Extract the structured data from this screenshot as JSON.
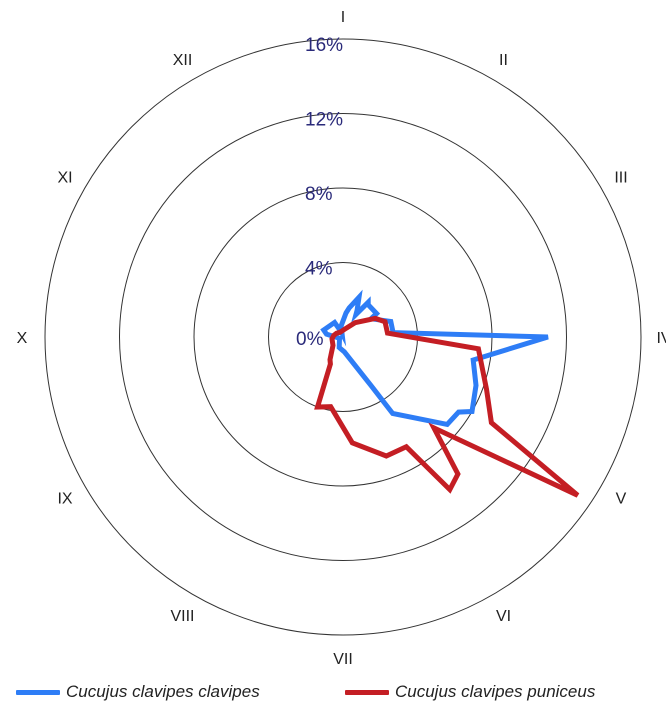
{
  "chart_data": {
    "type": "radar",
    "title": "",
    "categories": [
      "I",
      "II",
      "III",
      "IV",
      "V",
      "VI",
      "VII",
      "VIII",
      "IX",
      "X",
      "XI",
      "XII"
    ],
    "radial_ticks": [
      "0%",
      "4%",
      "8%",
      "12%",
      "16%"
    ],
    "rmax": 16,
    "start": "I at top, clockwise",
    "series": [
      {
        "name": "Cucujus clavipes clavipes",
        "color": "#2e7df6",
        "points": [
          [
            7,
            1.3
          ],
          [
            12,
            1.6
          ],
          [
            22,
            2.3
          ],
          [
            28,
            1.6
          ],
          [
            30,
            1.4
          ],
          [
            36,
            2.3
          ],
          [
            38,
            2.2
          ],
          [
            55,
            2.2
          ],
          [
            57,
            1.8
          ],
          [
            72,
            2.7
          ],
          [
            85,
            2.7
          ],
          [
            90,
            11.0
          ],
          [
            100,
            7.1
          ],
          [
            110,
            7.6
          ],
          [
            120,
            8.0
          ],
          [
            123,
            7.4
          ],
          [
            130,
            7.3
          ],
          [
            147,
            4.9
          ],
          [
            150,
            3.0
          ],
          [
            175,
            0.8
          ],
          [
            200,
            0.6
          ],
          [
            250,
            0.2
          ],
          [
            280,
            0.9
          ],
          [
            290,
            1.1
          ],
          [
            330,
            0.9
          ],
          [
            340,
            0.3
          ],
          [
            345,
            0.2
          ],
          [
            350,
            0.6
          ]
        ]
      },
      {
        "name": "Cucujus clavipes puniceus",
        "color": "#c41e24",
        "points": [
          [
            40,
            1.0
          ],
          [
            60,
            2.0
          ],
          [
            70,
            2.4
          ],
          [
            85,
            2.4
          ],
          [
            95,
            7.3
          ],
          [
            110,
            8.2
          ],
          [
            120,
            9.2
          ],
          [
            124,
            15.2
          ],
          [
            135,
            6.9
          ],
          [
            140,
            9.6
          ],
          [
            145,
            10.0
          ],
          [
            150,
            6.8
          ],
          [
            160,
            6.8
          ],
          [
            175,
            5.7
          ],
          [
            190,
            3.8
          ],
          [
            200,
            4.0
          ],
          [
            205,
            1.6
          ],
          [
            210,
            1.4
          ],
          [
            230,
            0.7
          ],
          [
            260,
            0.6
          ],
          [
            280,
            0.5
          ],
          [
            300,
            0.4
          ],
          [
            330,
            0.3
          ],
          [
            20,
            0.5
          ]
        ]
      }
    ]
  },
  "legend": {
    "clavipes": "Cucujus clavipes clavipes",
    "puniceus": "Cucujus clavipes puniceus"
  }
}
